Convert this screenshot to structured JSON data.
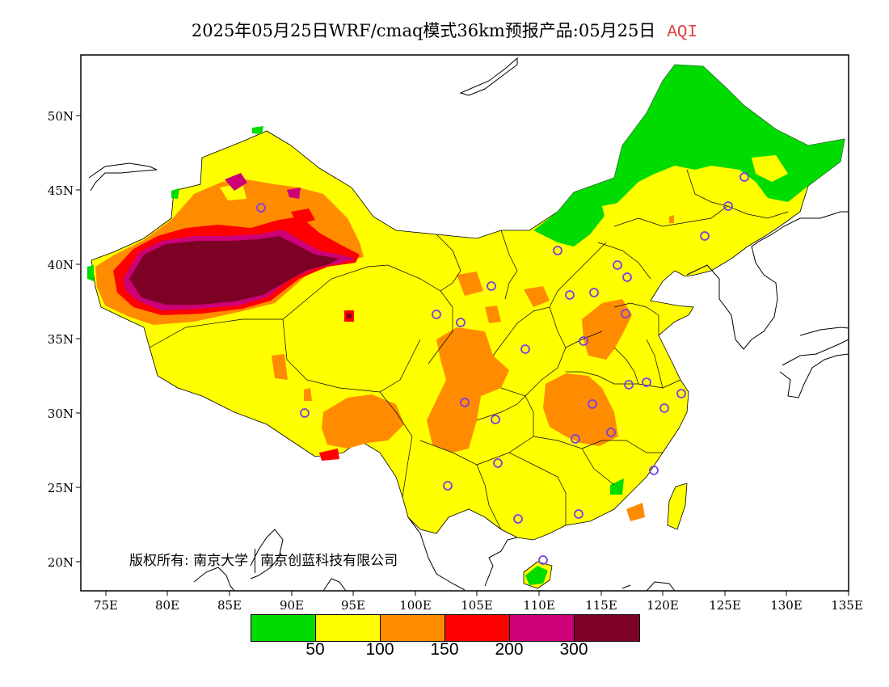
{
  "header": {
    "title": "2025年05月25日WRF/cmaq模式36km预报产品:05月25日",
    "variable": "AQI",
    "variable_color": "#e04040"
  },
  "axes": {
    "x_ticks": [
      "75E",
      "80E",
      "85E",
      "90E",
      "95E",
      "100E",
      "105E",
      "110E",
      "115E",
      "120E",
      "125E",
      "130E",
      "135E"
    ],
    "y_ticks": [
      "50N",
      "45N",
      "40N",
      "35N",
      "30N",
      "25N",
      "20N"
    ],
    "lon_range": [
      73,
      135
    ],
    "lat_range": [
      18,
      54
    ]
  },
  "legend": {
    "colors": [
      "#00dc00",
      "#ffff00",
      "#ff8c00",
      "#ff0000",
      "#cc0077",
      "#7d0025"
    ],
    "labels": [
      "50",
      "100",
      "150",
      "200",
      "300"
    ]
  },
  "copyright": {
    "label": "版权所有:",
    "org1": "南京大学",
    "org2": "南京创蓝科技有限公司"
  }
}
